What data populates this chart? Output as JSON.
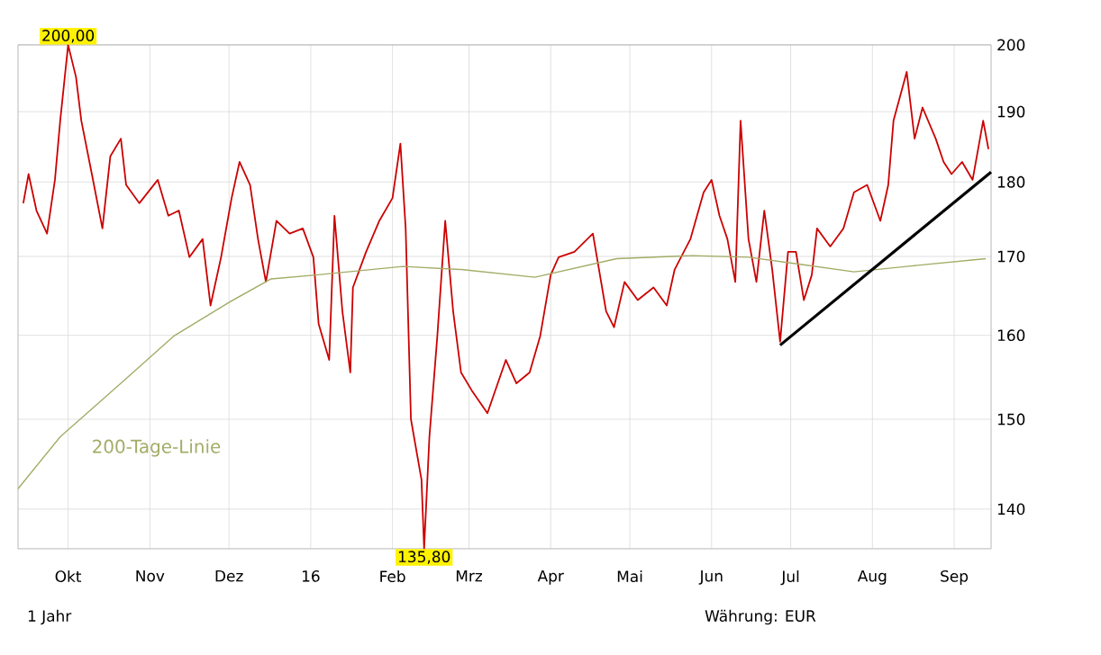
{
  "chart_data": {
    "type": "line",
    "log": "y",
    "grid": true,
    "legend": false,
    "marker": "none",
    "line_style": "solid",
    "xlim": [
      "2015-09-12",
      "2016-09-15"
    ],
    "ylim": [
      135.8,
      200
    ],
    "xticks": [
      {
        "value": "2015-10-01",
        "label": "Okt"
      },
      {
        "value": "2015-11-01",
        "label": "Nov"
      },
      {
        "value": "2015-12-01",
        "label": "Dez"
      },
      {
        "value": "2016-01-01",
        "label": "16"
      },
      {
        "value": "2016-02-01",
        "label": "Feb"
      },
      {
        "value": "2016-03-01",
        "label": "Mrz"
      },
      {
        "value": "2016-04-01",
        "label": "Apr"
      },
      {
        "value": "2016-05-01",
        "label": "Mai"
      },
      {
        "value": "2016-06-01",
        "label": "Jun"
      },
      {
        "value": "2016-07-01",
        "label": "Jul"
      },
      {
        "value": "2016-08-01",
        "label": "Aug"
      },
      {
        "value": "2016-09-01",
        "label": "Sep"
      }
    ],
    "yticks": [
      140,
      150,
      160,
      170,
      180,
      190,
      200
    ],
    "series": [
      {
        "color": "#cc0000",
        "x": [
          "2015-09-14",
          "2015-09-16",
          "2015-09-19",
          "2015-09-23",
          "2015-09-26",
          "2015-09-28",
          "2015-10-01",
          "2015-10-04",
          "2015-10-06",
          "2015-10-10",
          "2015-10-14",
          "2015-10-17",
          "2015-10-21",
          "2015-10-23",
          "2015-10-28",
          "2015-11-04",
          "2015-11-08",
          "2015-11-12",
          "2015-11-16",
          "2015-11-21",
          "2015-11-24",
          "2015-11-28",
          "2015-12-02",
          "2015-12-05",
          "2015-12-09",
          "2015-12-12",
          "2015-12-15",
          "2015-12-19",
          "2015-12-24",
          "2015-12-29",
          "2016-01-02",
          "2016-01-04",
          "2016-01-08",
          "2016-01-10",
          "2016-01-13",
          "2016-01-16",
          "2016-01-17",
          "2016-01-22",
          "2016-01-27",
          "2016-02-01",
          "2016-02-04",
          "2016-02-06",
          "2016-02-08",
          "2016-02-12",
          "2016-02-13",
          "2016-02-15",
          "2016-02-18",
          "2016-02-21",
          "2016-02-24",
          "2016-02-27",
          "2016-03-02",
          "2016-03-08",
          "2016-03-15",
          "2016-03-19",
          "2016-03-24",
          "2016-03-28",
          "2016-04-01",
          "2016-04-04",
          "2016-04-10",
          "2016-04-17",
          "2016-04-22",
          "2016-04-25",
          "2016-04-29",
          "2016-05-04",
          "2016-05-10",
          "2016-05-15",
          "2016-05-18",
          "2016-05-24",
          "2016-05-29",
          "2016-06-01",
          "2016-06-04",
          "2016-06-07",
          "2016-06-10",
          "2016-06-12",
          "2016-06-15",
          "2016-06-18",
          "2016-06-21",
          "2016-06-24",
          "2016-06-27",
          "2016-06-30",
          "2016-07-03",
          "2016-07-06",
          "2016-07-09",
          "2016-07-11",
          "2016-07-16",
          "2016-07-21",
          "2016-07-25",
          "2016-07-30",
          "2016-08-04",
          "2016-08-07",
          "2016-08-09",
          "2016-08-14",
          "2016-08-17",
          "2016-08-20",
          "2016-08-25",
          "2016-08-28",
          "2016-08-31",
          "2016-09-04",
          "2016-09-08",
          "2016-09-12",
          "2016-09-14"
        ],
        "values": [
          177.1,
          181.1,
          176.1,
          173.0,
          180.3,
          188.7,
          200,
          195.1,
          188.7,
          181.1,
          173.7,
          183.6,
          186.1,
          179.6,
          177.1,
          180.3,
          175.4,
          176.1,
          169.9,
          172.3,
          163.7,
          169.9,
          177.8,
          182.8,
          179.6,
          172.3,
          166.7,
          174.7,
          173.0,
          173.7,
          169.9,
          161.4,
          157.0,
          175.4,
          163.0,
          155.5,
          166.0,
          170.6,
          174.7,
          177.8,
          185.4,
          173.7,
          150.0,
          143.2,
          135.8,
          148.0,
          159.9,
          174.7,
          163.0,
          155.5,
          153.4,
          150.7,
          157.0,
          154.2,
          155.5,
          159.9,
          167.6,
          169.9,
          170.6,
          173.0,
          163.0,
          161.0,
          166.7,
          164.4,
          166.0,
          163.7,
          168.3,
          172.3,
          178.6,
          180.3,
          175.4,
          172.3,
          166.7,
          188.7,
          172.3,
          166.7,
          176.1,
          168.3,
          159.2,
          170.6,
          170.6,
          164.4,
          167.6,
          173.7,
          171.3,
          173.7,
          178.6,
          179.6,
          174.7,
          179.6,
          188.7,
          195.9,
          186.1,
          190.6,
          186.1,
          182.8,
          181.1,
          182.8,
          180.3,
          188.7,
          184.6
        ]
      },
      {
        "name": "200-Tage-Linie",
        "color": "#a4ac66",
        "x": [
          "2015-09-12",
          "2015-09-28",
          "2015-10-21",
          "2015-11-10",
          "2015-12-01",
          "2015-12-17",
          "2016-01-03",
          "2016-02-05",
          "2016-02-27",
          "2016-03-26",
          "2016-04-26",
          "2016-05-25",
          "2016-06-15",
          "2016-07-04",
          "2016-07-25",
          "2016-08-14",
          "2016-09-13"
        ],
        "values": [
          142.2,
          148.0,
          154.2,
          159.9,
          164.1,
          167.1,
          167.6,
          168.7,
          168.3,
          167.3,
          169.7,
          170.1,
          169.9,
          169.0,
          168.0,
          168.7,
          169.7
        ]
      },
      {
        "color": "#000000",
        "x": [
          "2016-06-27",
          "2016-09-15"
        ],
        "values": [
          158.8,
          181.4
        ]
      }
    ],
    "annotations": [
      {
        "text": "200,00",
        "x": "2015-10-01",
        "y": 200
      },
      {
        "text": "135,80",
        "x": "2016-02-13",
        "y": 135.8
      },
      "1 Jahr",
      "Währung: EUR"
    ]
  }
}
